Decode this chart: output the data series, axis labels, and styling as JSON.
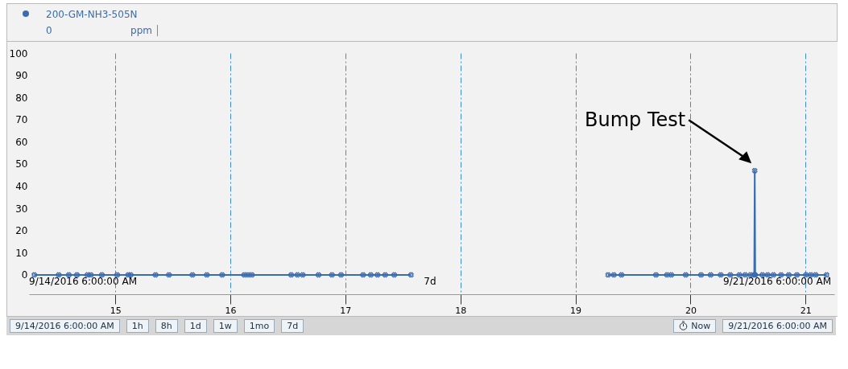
{
  "chart_data": {
    "type": "line",
    "ylabel": "ppm",
    "x": [
      "2016-09-14T07:06",
      "2016-09-14T12:12",
      "2016-09-14T14:18",
      "2016-09-14T16:00",
      "2016-09-14T18:12",
      "2016-09-14T18:54",
      "2016-09-14T21:12",
      "2016-09-15T00:24",
      "2016-09-15T02:42",
      "2016-09-15T03:12",
      "2016-09-15T08:24",
      "2016-09-15T11:12",
      "2016-09-15T16:06",
      "2016-09-15T19:06",
      "2016-09-15T22:18",
      "2016-09-16T02:54",
      "2016-09-16T03:42",
      "2016-09-16T04:30",
      "2016-09-16T12:42",
      "2016-09-16T14:00",
      "2016-09-16T15:06",
      "2016-09-16T18:24",
      "2016-09-16T21:12",
      "2016-09-16T23:06",
      "2016-09-17T03:42",
      "2016-09-17T05:18",
      "2016-09-17T06:42",
      "2016-09-17T08:18",
      "2016-09-17T10:12",
      "2016-09-17T13:42",
      "2016-09-18T06:00",
      "2016-09-19T06:48",
      "2016-09-19T08:00",
      "2016-09-19T09:36",
      "2016-09-19T16:48",
      "2016-09-19T19:06",
      "2016-09-19T20:00",
      "2016-09-19T23:00",
      "2016-09-20T02:12",
      "2016-09-20T04:12",
      "2016-09-20T06:18",
      "2016-09-20T08:18",
      "2016-09-20T10:12",
      "2016-09-20T11:24",
      "2016-09-20T12:30",
      "2016-09-20T13:18",
      "2016-09-20T13:24",
      "2016-09-20T13:30",
      "2016-09-20T15:00",
      "2016-09-20T16:06",
      "2016-09-20T17:18",
      "2016-09-20T18:54",
      "2016-09-20T20:30",
      "2016-09-20T22:12",
      "2016-09-21T00:06",
      "2016-09-21T01:06",
      "2016-09-21T02:06",
      "2016-09-21T04:24"
    ],
    "series": [
      {
        "name": "200-GM-NH3-505N",
        "color": "#3a6cb0",
        "values": [
          0,
          0,
          0,
          0,
          0,
          0,
          0,
          0,
          0,
          0,
          0,
          0,
          0,
          0,
          0,
          0,
          0,
          0,
          0,
          0,
          0,
          0,
          0,
          0,
          0,
          0,
          0,
          0,
          0,
          0,
          null,
          0,
          0,
          0,
          0,
          0,
          0,
          0,
          0,
          0,
          0,
          0,
          0,
          0,
          0,
          0,
          47,
          0,
          0,
          0,
          0,
          0,
          0,
          0,
          0,
          0,
          0,
          0
        ]
      }
    ],
    "xlim": [
      "2016-09-14T06:00",
      "2016-09-21T06:00"
    ],
    "xticks": [
      {
        "value": "2016-09-15T00:00",
        "label": "15"
      },
      {
        "value": "2016-09-16T00:00",
        "label": "16"
      },
      {
        "value": "2016-09-17T00:00",
        "label": "17"
      },
      {
        "value": "2016-09-18T00:00",
        "label": "18"
      },
      {
        "value": "2016-09-19T00:00",
        "label": "19"
      },
      {
        "value": "2016-09-20T00:00",
        "label": "20"
      },
      {
        "value": "2016-09-21T00:00",
        "label": "21"
      }
    ],
    "ylim": [
      -8.7,
      100
    ],
    "yticks": [
      0,
      10,
      20,
      30,
      40,
      50,
      60,
      70,
      80,
      90,
      100
    ],
    "grid": "x",
    "legend": "top left",
    "marker": "cross",
    "line_style": "solid",
    "annotations": [
      "0",
      "Bump Test",
      "9/14/2016 6:00:00 AM",
      "7d",
      "9/21/2016 6:00:00 AM",
      "9/14/2016 6:00:00 AM",
      "1h",
      "8h",
      "1d",
      "1w",
      "1mo",
      "7d",
      "Now",
      "9/21/2016 6:00:00 AM"
    ]
  }
}
